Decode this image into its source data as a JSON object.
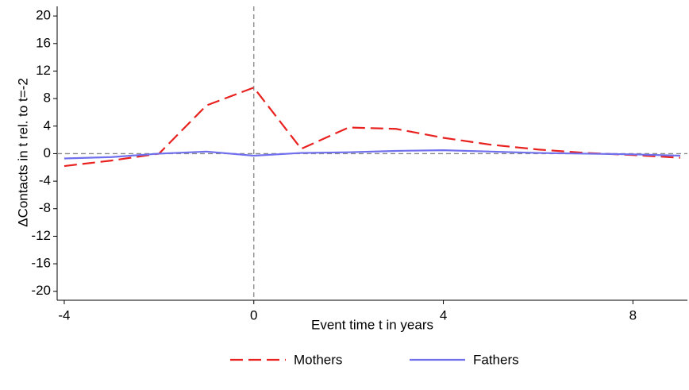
{
  "chart_data": {
    "type": "line",
    "x_label": "Event time t in years",
    "y_label": "ΔContacts in t rel. to t=-2",
    "x": [
      -4,
      -3,
      -2,
      -1,
      0,
      1,
      2,
      3,
      4,
      5,
      6,
      7,
      8,
      9
    ],
    "series": [
      {
        "name": "Mothers",
        "color": "#e8201e",
        "dash": "16 7",
        "values": [
          -1.8,
          -1.0,
          0,
          7.0,
          9.6,
          0.7,
          3.8,
          3.6,
          2.3,
          1.3,
          0.6,
          0.1,
          -0.2,
          -0.6
        ]
      },
      {
        "name": "Fathers",
        "color": "#7070ee",
        "dash": "none",
        "values": [
          -0.7,
          -0.5,
          0,
          0.3,
          -0.3,
          0.1,
          0.2,
          0.4,
          0.5,
          0.3,
          0.1,
          0,
          -0.1,
          -0.3
        ]
      }
    ],
    "xlim": [
      -4.15,
      9.15
    ],
    "ylim": [
      -21.3,
      21.4
    ],
    "xticks": [
      -4,
      0,
      4,
      8
    ],
    "yticks": [
      -20,
      -16,
      -12,
      -8,
      -4,
      0,
      4,
      8,
      12,
      16,
      20
    ],
    "reference_lines": {
      "x": 0,
      "y": 0
    },
    "legend": "bottom"
  }
}
